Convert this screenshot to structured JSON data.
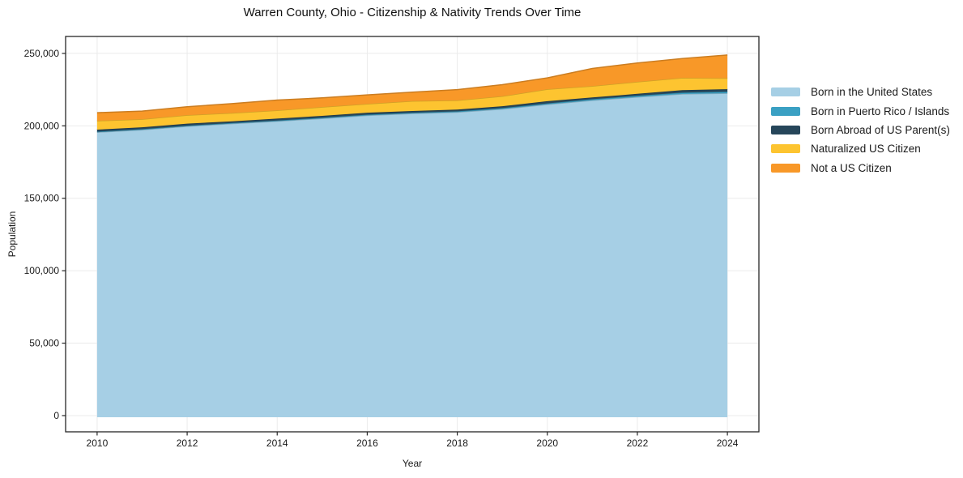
{
  "figure": {
    "title": "Warren County, Ohio - Citizenship & Nativity Trends Over Time",
    "xlabel": "Year",
    "ylabel": "Population"
  },
  "chart_data": {
    "type": "area",
    "stacked": true,
    "title": "Warren County, Ohio - Citizenship & Nativity Trends Over Time",
    "xlabel": "Year",
    "ylabel": "Population",
    "grid": true,
    "legend_position": "right-outside",
    "x": [
      2010,
      2011,
      2012,
      2013,
      2014,
      2015,
      2016,
      2017,
      2018,
      2019,
      2020,
      2021,
      2022,
      2023,
      2024
    ],
    "series": [
      {
        "name": "Born in the United States",
        "color": "#a6cfe5",
        "values": [
          195600,
          197300,
          199700,
          201500,
          203200,
          205100,
          207200,
          208500,
          209400,
          211600,
          214800,
          217600,
          219900,
          222000,
          222500
        ]
      },
      {
        "name": "Born in Puerto Rico / Islands",
        "color": "#3aa0c3",
        "values": [
          400,
          400,
          450,
          450,
          500,
          500,
          550,
          550,
          600,
          650,
          700,
          800,
          900,
          1000,
          1100
        ]
      },
      {
        "name": "Born Abroad of US Parent(s)",
        "color": "#26465a",
        "values": [
          1400,
          1300,
          1350,
          1200,
          1300,
          1300,
          1350,
          1200,
          1200,
          1300,
          1500,
          1200,
          1300,
          1700,
          1700
        ]
      },
      {
        "name": "Naturalized US Citizen",
        "color": "#fdc430",
        "values": [
          6100,
          5600,
          5900,
          5700,
          5700,
          6100,
          6100,
          6800,
          6400,
          6900,
          8300,
          7800,
          8300,
          8400,
          7600
        ]
      },
      {
        "name": "Not a US Citizen",
        "color": "#f89828",
        "values": [
          5600,
          5600,
          5800,
          6500,
          7100,
          6300,
          6200,
          6200,
          7400,
          8000,
          7800,
          12200,
          13000,
          13400,
          16000
        ]
      }
    ],
    "xticks": [
      2010,
      2012,
      2014,
      2016,
      2018,
      2020,
      2022,
      2024
    ],
    "ytick_values": [
      0,
      50000,
      100000,
      150000,
      200000,
      250000
    ],
    "ytick_labels": [
      "0",
      "50,000",
      "100,000",
      "150,000",
      "200,000",
      "250,000"
    ],
    "xlim": [
      2009.3,
      2024.7
    ],
    "ylim": [
      -11200,
      261700
    ],
    "grid_color": "#ebebeb",
    "frame_color": "#262626",
    "text_color": "#1a1a1a"
  }
}
